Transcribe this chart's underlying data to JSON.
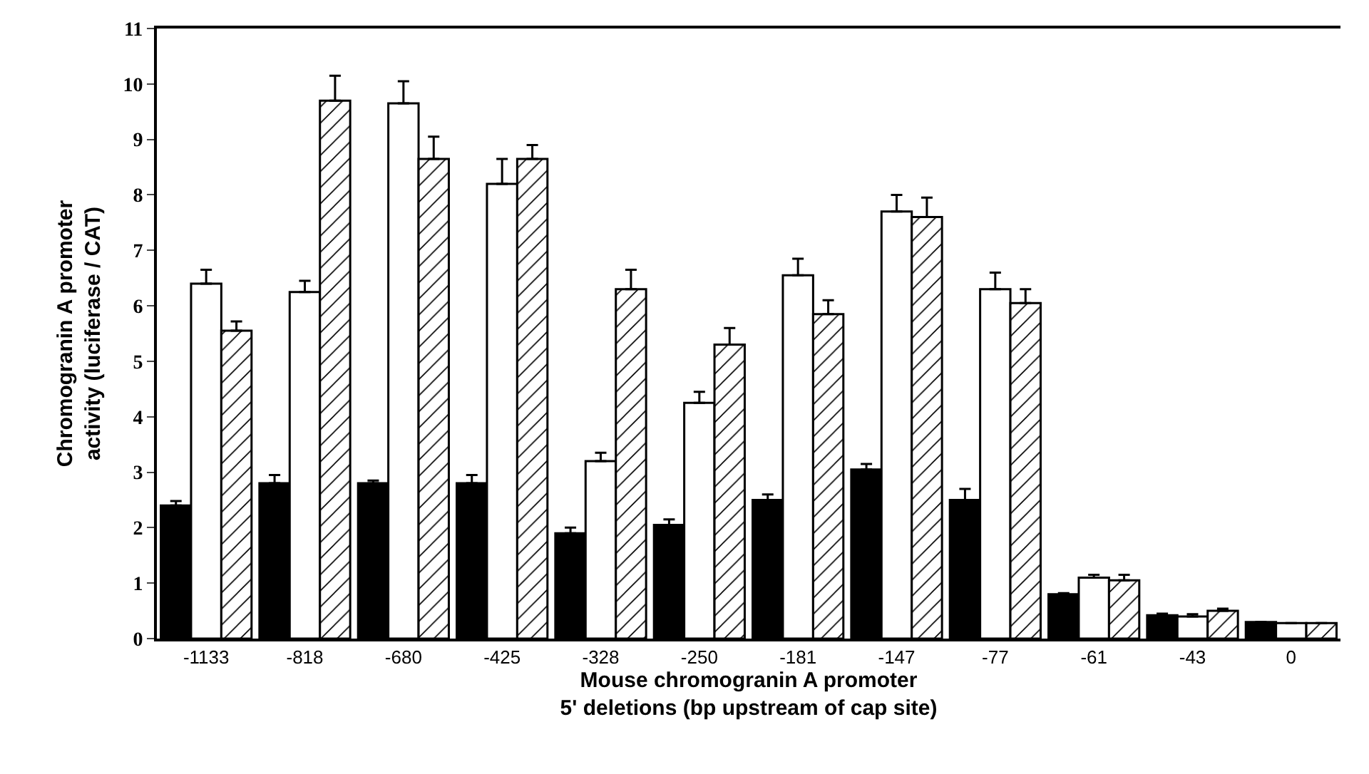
{
  "chart_data": {
    "type": "bar",
    "xlabel": "Mouse chromogranin A promoter\n5' deletions (bp upstream of cap site)",
    "ylabel": "Chromogranin A promoter\nactivity (luciferase / CAT)",
    "categories": [
      "-1133",
      "-818",
      "-680",
      "-425",
      "-328",
      "-250",
      "-181",
      "-147",
      "-77",
      "-61",
      "-43",
      "0"
    ],
    "series": [
      {
        "color": "#000000",
        "values": [
          2.4,
          2.8,
          2.8,
          2.8,
          1.9,
          2.05,
          2.5,
          3.05,
          2.5,
          0.8,
          0.42,
          0.3
        ],
        "errors": [
          [
            2.4,
            2.48
          ],
          [
            2.8,
            2.95
          ],
          [
            2.8,
            2.85
          ],
          [
            2.8,
            2.95
          ],
          [
            1.9,
            2.0
          ],
          [
            2.05,
            2.15
          ],
          [
            2.5,
            2.6
          ],
          [
            3.05,
            3.15
          ],
          [
            2.5,
            2.7
          ],
          [
            0.8,
            0.82
          ],
          [
            0.42,
            0.45
          ],
          null
        ]
      },
      {
        "color": "#ffffff",
        "values": [
          6.4,
          6.25,
          9.65,
          8.2,
          3.2,
          4.25,
          6.55,
          7.7,
          6.3,
          1.1,
          0.4,
          0.28
        ],
        "errors": [
          [
            6.4,
            6.65
          ],
          [
            6.25,
            6.45
          ],
          [
            9.65,
            10.05
          ],
          [
            8.2,
            8.65
          ],
          [
            3.2,
            3.35
          ],
          [
            4.25,
            4.45
          ],
          [
            6.55,
            6.85
          ],
          [
            7.7,
            8.0
          ],
          [
            6.3,
            6.6
          ],
          [
            1.1,
            1.15
          ],
          [
            0.4,
            0.44
          ],
          null
        ]
      },
      {
        "color": "#000000",
        "values": [
          5.55,
          9.7,
          8.65,
          8.65,
          6.3,
          5.3,
          5.85,
          7.6,
          6.05,
          1.05,
          0.5,
          0.28
        ],
        "errors": [
          [
            5.55,
            5.72
          ],
          [
            9.7,
            10.15
          ],
          [
            8.65,
            9.05
          ],
          [
            8.65,
            8.9
          ],
          [
            6.3,
            6.65
          ],
          [
            5.3,
            5.6
          ],
          [
            5.85,
            6.1
          ],
          [
            7.6,
            7.95
          ],
          [
            6.05,
            6.3
          ],
          [
            1.05,
            1.15
          ],
          [
            0.5,
            0.54
          ],
          null
        ]
      }
    ],
    "ylim": [
      0,
      11
    ],
    "yticks": [
      0,
      1,
      2,
      3,
      4,
      5,
      6,
      7,
      8,
      9,
      10,
      11
    ],
    "grid": false
  }
}
